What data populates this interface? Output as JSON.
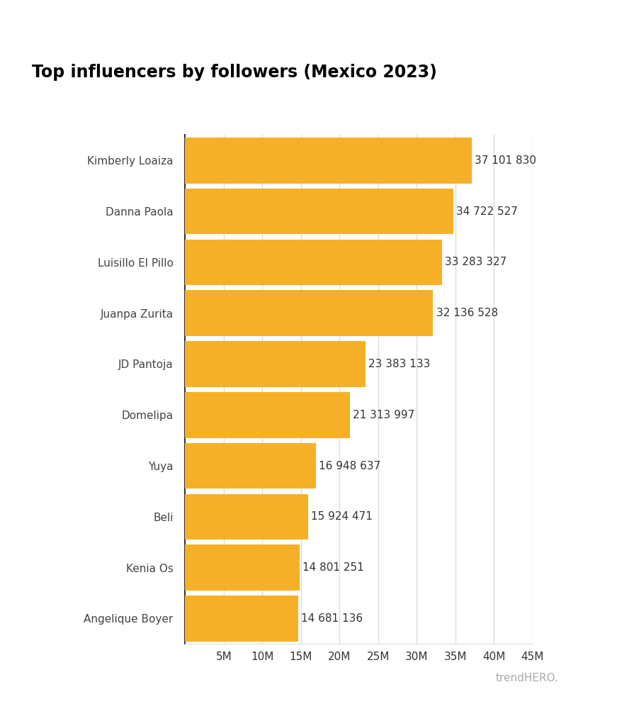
{
  "chart_data": {
    "type": "bar",
    "title": "Top influencers by followers (Mexico 2023)",
    "orientation": "horizontal",
    "categories": [
      "Kimberly Loaiza",
      "Danna Paola",
      "Luisillo El Pillo",
      "Juanpa Zurita",
      "JD Pantoja",
      "Domelipa",
      "Yuya",
      "Beli",
      "Kenia Os",
      "Angelique Boyer"
    ],
    "values": [
      37101830,
      34722527,
      33283327,
      32136528,
      23383133,
      21313997,
      16948637,
      15924471,
      14801251,
      14681136
    ],
    "value_labels": [
      "37 101 830",
      "34 722 527",
      "33 283 327",
      "32 136 528",
      "23 383 133",
      "21 313 997",
      "16 948 637",
      "15 924 471",
      "14 801 251",
      "14 681 136"
    ],
    "color": "#f5b027",
    "xlim": [
      0,
      45000000
    ],
    "xticks": [
      {
        "value": 5000000,
        "label": "5M"
      },
      {
        "value": 10000000,
        "label": "10M"
      },
      {
        "value": 15000000,
        "label": "15M"
      },
      {
        "value": 20000000,
        "label": "20M"
      },
      {
        "value": 25000000,
        "label": "25M"
      },
      {
        "value": 30000000,
        "label": "30M"
      },
      {
        "value": 35000000,
        "label": "35M"
      },
      {
        "value": 40000000,
        "label": "40M"
      },
      {
        "value": 45000000,
        "label": "45M"
      }
    ],
    "grid": true,
    "data_labels": true,
    "source": "trendHERO."
  }
}
